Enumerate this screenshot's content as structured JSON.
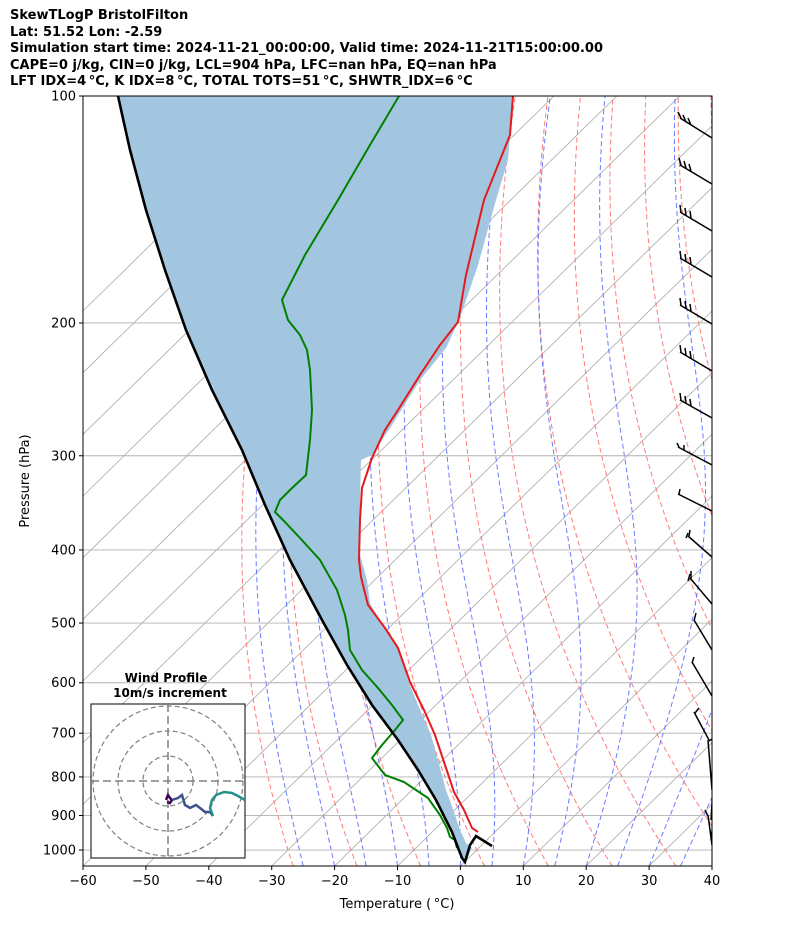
{
  "header": {
    "title": "SkewTLogP BristolFilton",
    "location": "Lat: 51.52   Lon: -2.59",
    "simulation": "Simulation start time: 2024-11-21_00:00:00, Valid time: 2024-11-21T15:00:00.00",
    "indices1": "CAPE=0 j/kg, CIN=0 j/kg, LCL=904 hPa, LFC=nan hPa, EQ=nan hPa",
    "indices2": "LFT IDX=4 °C, K IDX=8 °C, TOTAL TOTS=51 °C, SHWTR_IDX=6 °C"
  },
  "chart_data": {
    "type": "line",
    "title": "",
    "xlabel": "Temperature ( °C)",
    "ylabel": "Pressure (hPa)",
    "xlim": [
      -60,
      40
    ],
    "ylim": [
      1050,
      100
    ],
    "y_scale": "log",
    "x_ticks": [
      "−60",
      "−50",
      "−40",
      "−30",
      "−20",
      "−10",
      "0",
      "10",
      "20",
      "30",
      "40"
    ],
    "y_ticks": [
      "1000",
      "900",
      "800",
      "700",
      "600",
      "500",
      "400",
      "300",
      "200",
      "100"
    ],
    "grid": true,
    "colors": {
      "temperature": "#e41a1c",
      "dewpoint": "#008000",
      "parcel": "#000000",
      "shade": "#a3c6e0",
      "dry_adiabat": "#ff6b6b",
      "moist_adiabat": "#5a6cff",
      "isotherm": "#a9a9a9"
    },
    "series": [],
    "wind_profile": {
      "title": "Wind Profile",
      "subtitle": "10m/s increment"
    }
  }
}
